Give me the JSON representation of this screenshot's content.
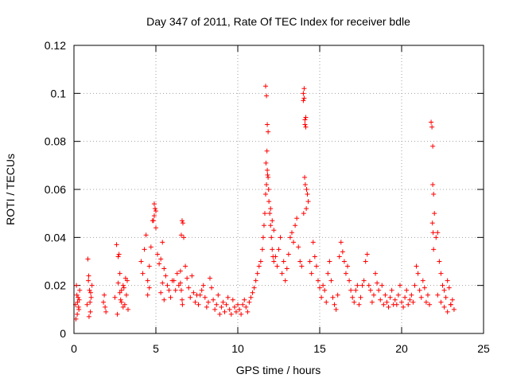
{
  "chart_data": {
    "type": "scatter",
    "title": "Day 347 of 2011, Rate Of TEC Index for receiver bdle",
    "xlabel": "GPS time / hours",
    "ylabel": "ROTI / TECUs",
    "xlim": [
      0,
      25
    ],
    "ylim": [
      0,
      0.12
    ],
    "xticks": [
      0,
      5,
      10,
      15,
      20,
      25
    ],
    "yticks": [
      0,
      0.02,
      0.04,
      0.06,
      0.08,
      0.1,
      0.12
    ],
    "xtick_labels": [
      "0",
      "5",
      "10",
      "15",
      "20",
      "25"
    ],
    "ytick_labels": [
      "0",
      "0.02",
      "0.04",
      "0.06",
      "0.08",
      "0.1",
      "0.12"
    ],
    "grid": true,
    "marker": "+",
    "color": "#ff0000",
    "series": [
      {
        "x": [
          0.1,
          0.15,
          0.2,
          0.25,
          0.3,
          0.35,
          0.12,
          0.22,
          0.28,
          0.18,
          0.32,
          0.8,
          0.85,
          0.9,
          0.95,
          1.0,
          1.05,
          1.1,
          0.88,
          0.92,
          0.98,
          1.02,
          1.8,
          1.85,
          1.9,
          1.95,
          2.5,
          2.6,
          2.7,
          2.75,
          2.8,
          2.9,
          3.0,
          3.1,
          3.2,
          3.25,
          3.3,
          2.65,
          2.85,
          3.05,
          3.15,
          2.7,
          2.8,
          2.9,
          3.0,
          4.1,
          4.2,
          4.3,
          4.4,
          4.5,
          4.6,
          4.7,
          4.8,
          4.9,
          5.0,
          5.1,
          5.2,
          5.3,
          5.4,
          5.5,
          5.6,
          5.7,
          5.8,
          5.9,
          6.0,
          4.85,
          4.9,
          4.95,
          5.0,
          4.5,
          4.6,
          5.3,
          5.4,
          5.5,
          6.1,
          6.2,
          6.3,
          6.4,
          6.5,
          6.55,
          6.6,
          6.65,
          6.7,
          6.8,
          6.9,
          7.0,
          7.1,
          7.2,
          7.3,
          7.4,
          7.5,
          6.5,
          6.6,
          6.55,
          6.62,
          7.6,
          7.7,
          7.8,
          7.9,
          8.0,
          8.1,
          8.2,
          8.3,
          8.4,
          8.5,
          8.6,
          8.7,
          8.8,
          8.9,
          9.0,
          9.1,
          9.2,
          9.3,
          9.4,
          9.5,
          9.6,
          9.7,
          9.8,
          9.9,
          10.0,
          10.1,
          10.2,
          10.3,
          10.4,
          10.5,
          10.6,
          10.7,
          10.8,
          10.9,
          11.0,
          11.1,
          11.2,
          11.3,
          11.4,
          11.5,
          11.55,
          11.6,
          11.65,
          11.7,
          11.75,
          11.8,
          11.85,
          11.9,
          11.95,
          12.0,
          12.05,
          12.1,
          12.15,
          12.2,
          11.7,
          11.75,
          11.8,
          11.85,
          11.78,
          11.82,
          11.72,
          11.88,
          12.0,
          12.1,
          12.2,
          12.3,
          12.4,
          12.5,
          12.6,
          12.7,
          12.8,
          12.9,
          13.0,
          13.1,
          13.2,
          13.3,
          13.4,
          13.5,
          13.6,
          13.7,
          13.8,
          13.9,
          14.0,
          14.05,
          14.1,
          14.15,
          14.2,
          14.25,
          14.3,
          14.0,
          14.05,
          14.1,
          14.15,
          14.08,
          14.12,
          14.02,
          14.18,
          14.4,
          14.5,
          14.6,
          14.7,
          14.8,
          14.9,
          15.0,
          15.1,
          15.2,
          15.3,
          15.4,
          15.5,
          15.6,
          15.7,
          15.8,
          15.9,
          16.0,
          16.1,
          16.2,
          16.3,
          16.4,
          16.5,
          16.6,
          16.7,
          16.8,
          16.9,
          17.0,
          17.1,
          17.2,
          17.3,
          17.4,
          17.5,
          17.6,
          17.7,
          17.8,
          17.9,
          18.0,
          18.1,
          18.2,
          18.3,
          18.4,
          18.5,
          18.6,
          18.7,
          18.8,
          18.9,
          19.0,
          19.1,
          19.2,
          19.3,
          19.4,
          19.5,
          19.6,
          19.7,
          19.8,
          19.9,
          20.0,
          20.1,
          20.2,
          20.3,
          20.4,
          20.5,
          20.6,
          20.7,
          20.8,
          20.9,
          21.0,
          21.1,
          21.2,
          21.3,
          21.4,
          21.5,
          21.6,
          21.7,
          21.8,
          21.85,
          21.9,
          21.95,
          22.0,
          21.88,
          21.92,
          21.9,
          21.95,
          22.1,
          22.2,
          22.3,
          22.4,
          22.5,
          22.6,
          22.7,
          22.8,
          22.9,
          23.0,
          23.1,
          23.2,
          22.2,
          22.4,
          22.6,
          22.8,
          23.0
        ],
        "y": [
          0.012,
          0.02,
          0.008,
          0.015,
          0.01,
          0.018,
          0.006,
          0.013,
          0.011,
          0.016,
          0.014,
          0.012,
          0.031,
          0.024,
          0.018,
          0.009,
          0.015,
          0.02,
          0.022,
          0.007,
          0.013,
          0.017,
          0.013,
          0.016,
          0.011,
          0.009,
          0.015,
          0.037,
          0.032,
          0.033,
          0.025,
          0.018,
          0.02,
          0.012,
          0.016,
          0.022,
          0.01,
          0.008,
          0.014,
          0.019,
          0.023,
          0.021,
          0.017,
          0.013,
          0.011,
          0.03,
          0.025,
          0.035,
          0.041,
          0.022,
          0.028,
          0.036,
          0.047,
          0.054,
          0.051,
          0.033,
          0.029,
          0.031,
          0.038,
          0.027,
          0.024,
          0.02,
          0.018,
          0.015,
          0.022,
          0.047,
          0.049,
          0.052,
          0.044,
          0.016,
          0.019,
          0.017,
          0.021,
          0.014,
          0.022,
          0.018,
          0.025,
          0.02,
          0.026,
          0.041,
          0.047,
          0.046,
          0.04,
          0.028,
          0.023,
          0.019,
          0.015,
          0.024,
          0.017,
          0.013,
          0.016,
          0.021,
          0.014,
          0.018,
          0.012,
          0.012,
          0.016,
          0.018,
          0.02,
          0.015,
          0.011,
          0.013,
          0.023,
          0.019,
          0.014,
          0.01,
          0.012,
          0.016,
          0.008,
          0.011,
          0.013,
          0.009,
          0.012,
          0.015,
          0.01,
          0.008,
          0.014,
          0.011,
          0.009,
          0.012,
          0.01,
          0.008,
          0.012,
          0.014,
          0.011,
          0.009,
          0.013,
          0.015,
          0.017,
          0.019,
          0.022,
          0.025,
          0.028,
          0.03,
          0.035,
          0.04,
          0.045,
          0.05,
          0.058,
          0.062,
          0.068,
          0.065,
          0.055,
          0.05,
          0.045,
          0.04,
          0.035,
          0.032,
          0.03,
          0.103,
          0.099,
          0.087,
          0.084,
          0.076,
          0.066,
          0.071,
          0.06,
          0.052,
          0.047,
          0.043,
          0.032,
          0.028,
          0.035,
          0.04,
          0.025,
          0.03,
          0.022,
          0.027,
          0.033,
          0.04,
          0.042,
          0.038,
          0.045,
          0.048,
          0.036,
          0.03,
          0.028,
          0.1,
          0.102,
          0.087,
          0.09,
          0.06,
          0.058,
          0.055,
          0.097,
          0.098,
          0.089,
          0.086,
          0.065,
          0.062,
          0.05,
          0.052,
          0.03,
          0.025,
          0.038,
          0.032,
          0.028,
          0.022,
          0.019,
          0.015,
          0.02,
          0.018,
          0.013,
          0.025,
          0.03,
          0.022,
          0.015,
          0.012,
          0.01,
          0.016,
          0.032,
          0.038,
          0.034,
          0.03,
          0.025,
          0.028,
          0.022,
          0.018,
          0.015,
          0.013,
          0.018,
          0.02,
          0.012,
          0.015,
          0.02,
          0.022,
          0.03,
          0.033,
          0.02,
          0.018,
          0.013,
          0.016,
          0.025,
          0.021,
          0.018,
          0.014,
          0.02,
          0.012,
          0.016,
          0.013,
          0.011,
          0.015,
          0.018,
          0.012,
          0.014,
          0.012,
          0.016,
          0.02,
          0.013,
          0.011,
          0.015,
          0.018,
          0.012,
          0.014,
          0.016,
          0.013,
          0.02,
          0.028,
          0.025,
          0.018,
          0.015,
          0.022,
          0.019,
          0.013,
          0.016,
          0.012,
          0.088,
          0.086,
          0.078,
          0.058,
          0.05,
          0.046,
          0.042,
          0.062,
          0.035,
          0.04,
          0.042,
          0.03,
          0.025,
          0.02,
          0.018,
          0.015,
          0.022,
          0.019,
          0.012,
          0.014,
          0.01,
          0.016,
          0.013,
          0.011,
          0.009,
          0.012
        ]
      }
    ]
  }
}
